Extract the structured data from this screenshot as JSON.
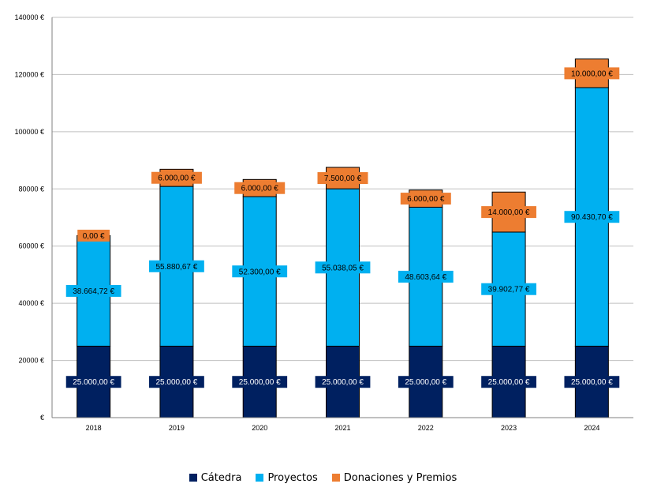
{
  "chart_data": {
    "type": "bar",
    "stacked": true,
    "categories": [
      "2018",
      "2019",
      "2020",
      "2021",
      "2022",
      "2023",
      "2024"
    ],
    "series": [
      {
        "name": "Cátedra",
        "color": "#002060",
        "values": [
          25000,
          25000,
          25000,
          25000,
          25000,
          25000,
          25000
        ],
        "labels": [
          "25.000,00 €",
          "25.000,00 €",
          "25.000,00 €",
          "25.000,00 €",
          "25.000,00 €",
          "25.000,00 €",
          "25.000,00 €"
        ]
      },
      {
        "name": "Proyectos",
        "color": "#00B0F0",
        "values": [
          38664.72,
          55880.67,
          52300.0,
          55038.05,
          48603.64,
          39902.77,
          90430.7
        ],
        "labels": [
          "38.664,72 €",
          "55.880,67 €",
          "52.300,00 €",
          "55.038,05 €",
          "48.603,64 €",
          "39.902,77 €",
          "90.430,70 €"
        ]
      },
      {
        "name": "Donaciones y Premios",
        "color": "#ED7D31",
        "values": [
          0,
          6000,
          6000,
          7500,
          6000,
          14000,
          10000
        ],
        "labels": [
          "0,00 €",
          "6.000,00 €",
          "6.000,00 €",
          "7.500,00 €",
          "6.000,00 €",
          "14.000,00 €",
          "10.000,00 €"
        ]
      }
    ],
    "ylim": [
      0,
      140000
    ],
    "y_ticks": [
      0,
      20000,
      40000,
      60000,
      80000,
      100000,
      120000,
      140000
    ],
    "y_tick_labels": [
      "€",
      "20000 €",
      "40000 €",
      "60000 €",
      "80000 €",
      "100000 €",
      "120000 €",
      "140000 €"
    ],
    "grid": true,
    "legend": "bottom"
  }
}
